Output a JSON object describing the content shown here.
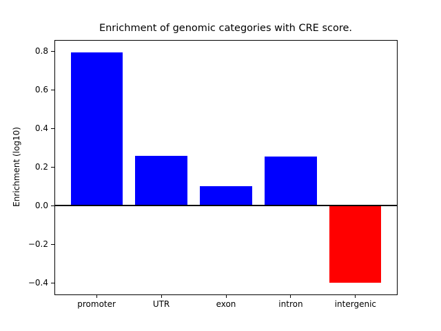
{
  "chart_data": {
    "type": "bar",
    "title": "Enrichment of genomic categories with CRE score.",
    "xlabel": "",
    "ylabel": "Enrichment (log10)",
    "categories": [
      "promoter",
      "UTR",
      "exon",
      "intron",
      "intergenic"
    ],
    "values": [
      0.795,
      0.26,
      0.1,
      0.255,
      -0.4
    ],
    "bar_colors": [
      "#0000ff",
      "#0000ff",
      "#0000ff",
      "#0000ff",
      "#ff0000"
    ],
    "positive_color": "#0000ff",
    "negative_color": "#ff0000",
    "ylim": [
      -0.46,
      0.855
    ],
    "xlim": [
      -0.64,
      4.64
    ],
    "bar_width_fraction": 0.8,
    "yticks": [
      0.8,
      0.6,
      0.4,
      0.2,
      0.0,
      -0.2,
      -0.4
    ],
    "ytick_labels": [
      "0.8",
      "0.6",
      "0.4",
      "0.2",
      "0.0",
      "−0.2",
      "−0.4"
    ],
    "zero_line": true,
    "zero_line_color": "#000000",
    "grid": false,
    "legend": null,
    "axis_color": "#000000",
    "text_color": "#000000",
    "background_color": "#ffffff"
  }
}
